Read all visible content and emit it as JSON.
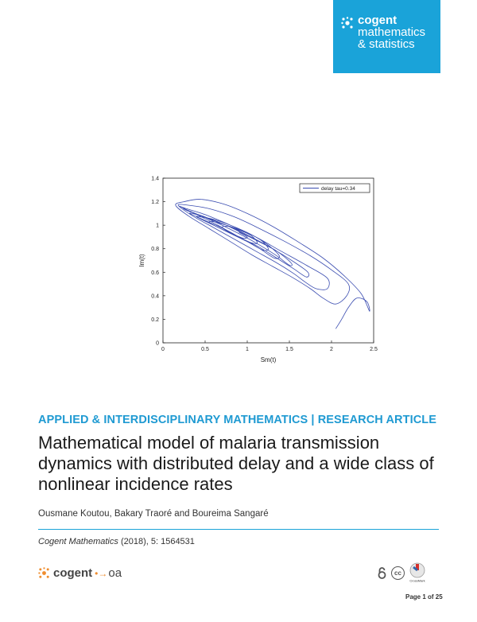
{
  "journal_brand": {
    "line1": "cogent",
    "line2": "mathematics",
    "line3": "& statistics"
  },
  "figure": {
    "xlabel": "Sm(t)",
    "ylabel": "Im(t)",
    "legend": "delay tau=0.34",
    "line_color": "#3a4cb0"
  },
  "chart_data": {
    "type": "line",
    "xlabel": "Sm(t)",
    "ylabel": "Im(t)",
    "xlim": [
      0,
      2.5
    ],
    "ylim": [
      0,
      1.4
    ],
    "xticks": [
      "0",
      "0.5",
      "1",
      "1.5",
      "2",
      "2.5"
    ],
    "yticks": [
      "0",
      "0.2",
      "0.4",
      "0.6",
      "0.8",
      "1",
      "1.2",
      "1.4"
    ],
    "legend_position": "top-right",
    "series": [
      {
        "name": "delay tau=0.34",
        "x": [
          2.05,
          2.12,
          2.2,
          2.3,
          2.42,
          2.45,
          2.35,
          2.15,
          1.9,
          1.6,
          1.3,
          1.0,
          0.72,
          0.45,
          0.25,
          0.15,
          0.3,
          0.55,
          0.8,
          1.05,
          1.3,
          1.55,
          1.75,
          1.9,
          2.05,
          2.18,
          2.2,
          2.0,
          1.75,
          1.45,
          1.15,
          0.85,
          0.55,
          0.3,
          0.18,
          0.35,
          0.6,
          0.85,
          1.1,
          1.35,
          1.55,
          1.7,
          1.82,
          1.95,
          1.95,
          1.7,
          1.4,
          1.1,
          0.8,
          0.5,
          0.28,
          0.2,
          0.4,
          0.65,
          0.9,
          1.15,
          1.35,
          1.55,
          1.7,
          1.72,
          1.55,
          1.3,
          1.0,
          0.75,
          0.5,
          0.3,
          0.25,
          0.45,
          0.7,
          0.95,
          1.15,
          1.35,
          1.5,
          1.52,
          1.35,
          1.1,
          0.85,
          0.6,
          0.4,
          0.32,
          0.5,
          0.75,
          0.95,
          1.15,
          1.32,
          1.38,
          1.25,
          1.05,
          0.8,
          0.6,
          0.45,
          0.4,
          0.6,
          0.8,
          1.0,
          1.18,
          1.25,
          1.15,
          0.95,
          0.75,
          0.6,
          0.55,
          0.72,
          0.9,
          1.05,
          1.12,
          1.05,
          0.9,
          0.78,
          0.7,
          0.82,
          0.95,
          1.0,
          0.9
        ],
        "y": [
          0.12,
          0.2,
          0.3,
          0.38,
          0.35,
          0.27,
          0.42,
          0.57,
          0.72,
          0.86,
          0.99,
          1.1,
          1.18,
          1.22,
          1.2,
          1.17,
          1.08,
          0.97,
          0.86,
          0.75,
          0.65,
          0.55,
          0.46,
          0.38,
          0.33,
          0.4,
          0.5,
          0.62,
          0.74,
          0.86,
          0.97,
          1.07,
          1.14,
          1.17,
          1.17,
          1.08,
          0.98,
          0.88,
          0.78,
          0.68,
          0.59,
          0.51,
          0.46,
          0.46,
          0.55,
          0.66,
          0.78,
          0.9,
          1.0,
          1.09,
          1.14,
          1.16,
          1.09,
          1.0,
          0.9,
          0.81,
          0.72,
          0.63,
          0.56,
          0.6,
          0.69,
          0.8,
          0.91,
          1.0,
          1.07,
          1.12,
          1.14,
          1.08,
          1.0,
          0.91,
          0.83,
          0.74,
          0.66,
          0.68,
          0.78,
          0.88,
          0.97,
          1.04,
          1.09,
          1.1,
          1.04,
          0.96,
          0.88,
          0.8,
          0.72,
          0.74,
          0.83,
          0.92,
          1.0,
          1.05,
          1.07,
          1.07,
          1.0,
          0.93,
          0.86,
          0.79,
          0.8,
          0.88,
          0.95,
          1.0,
          1.03,
          1.02,
          0.96,
          0.9,
          0.85,
          0.85,
          0.91,
          0.96,
          0.99,
          0.98,
          0.93,
          0.89,
          0.9,
          0.94
        ]
      }
    ]
  },
  "category": "APPLIED & INTERDISCIPLINARY MATHEMATICS | RESEARCH ARTICLE",
  "title": "Mathematical model of malaria transmission dynamics with distributed delay and a wide class of nonlinear incidence rates",
  "authors": "Ousmane Koutou, Bakary Traoré and Boureima Sangaré",
  "citation": {
    "journal": "Cogent Mathematics",
    "rest": " (2018), 5: 1564531"
  },
  "footer_logo": {
    "cogent": "cogent",
    "oa": "oa"
  },
  "page_number": "Page 1 of 25",
  "colors": {
    "brand_blue": "#1aa3d9",
    "accent_orange": "#ef8d2f"
  }
}
